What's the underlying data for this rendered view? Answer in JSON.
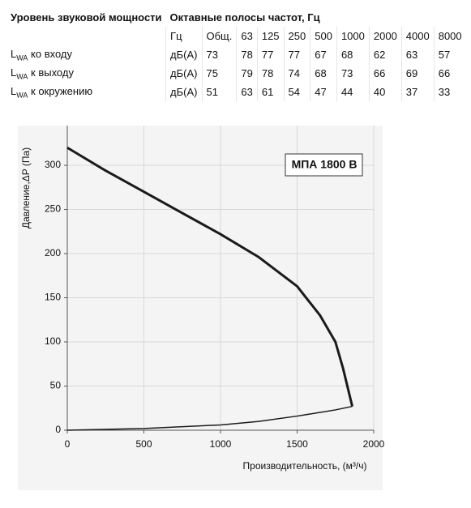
{
  "table": {
    "title": "Уровень звуковой мощности",
    "bands_title": "Октавные полосы частот, Гц",
    "unit_header": "Гц",
    "bands": [
      "Общ.",
      "63",
      "125",
      "250",
      "500",
      "1000",
      "2000",
      "4000",
      "8000"
    ],
    "rows": [
      {
        "symbol": "L",
        "subscript": "WA",
        "label": "ко входу",
        "unit": "дБ(А)",
        "values": [
          73,
          78,
          77,
          77,
          67,
          68,
          62,
          63,
          57
        ]
      },
      {
        "symbol": "L",
        "subscript": "WA",
        "label": "к выходу",
        "unit": "дБ(А)",
        "values": [
          75,
          79,
          78,
          74,
          68,
          73,
          66,
          69,
          66
        ]
      },
      {
        "symbol": "L",
        "subscript": "WA",
        "label": "к окружению",
        "unit": "дБ(А)",
        "values": [
          51,
          63,
          61,
          54,
          47,
          44,
          40,
          37,
          33
        ]
      }
    ]
  },
  "chart_data": {
    "type": "line",
    "annotation": "МПА 1800 В",
    "xlabel": "Производительность, (м³/ч)",
    "ylabel": "Давление,ΔP (Па)",
    "xlim": [
      0,
      2000
    ],
    "ylim": [
      0,
      345
    ],
    "xticks": [
      0,
      500,
      1000,
      1500,
      2000
    ],
    "yticks": [
      0,
      50,
      100,
      150,
      200,
      250,
      300
    ],
    "grid": true,
    "series": [
      {
        "color": "#1a1a1a",
        "x": [
          0,
          250,
          500,
          750,
          1000,
          1250,
          1500,
          1650,
          1750,
          1800,
          1860
        ],
        "values": [
          320,
          294,
          270,
          246,
          222,
          196,
          163,
          130,
          100,
          70,
          27
        ]
      },
      {
        "color": "#1a1a1a",
        "x": [
          0,
          500,
          1000,
          1250,
          1500,
          1750,
          1860
        ],
        "values": [
          0,
          2,
          6,
          10,
          16,
          23,
          27
        ]
      }
    ]
  }
}
